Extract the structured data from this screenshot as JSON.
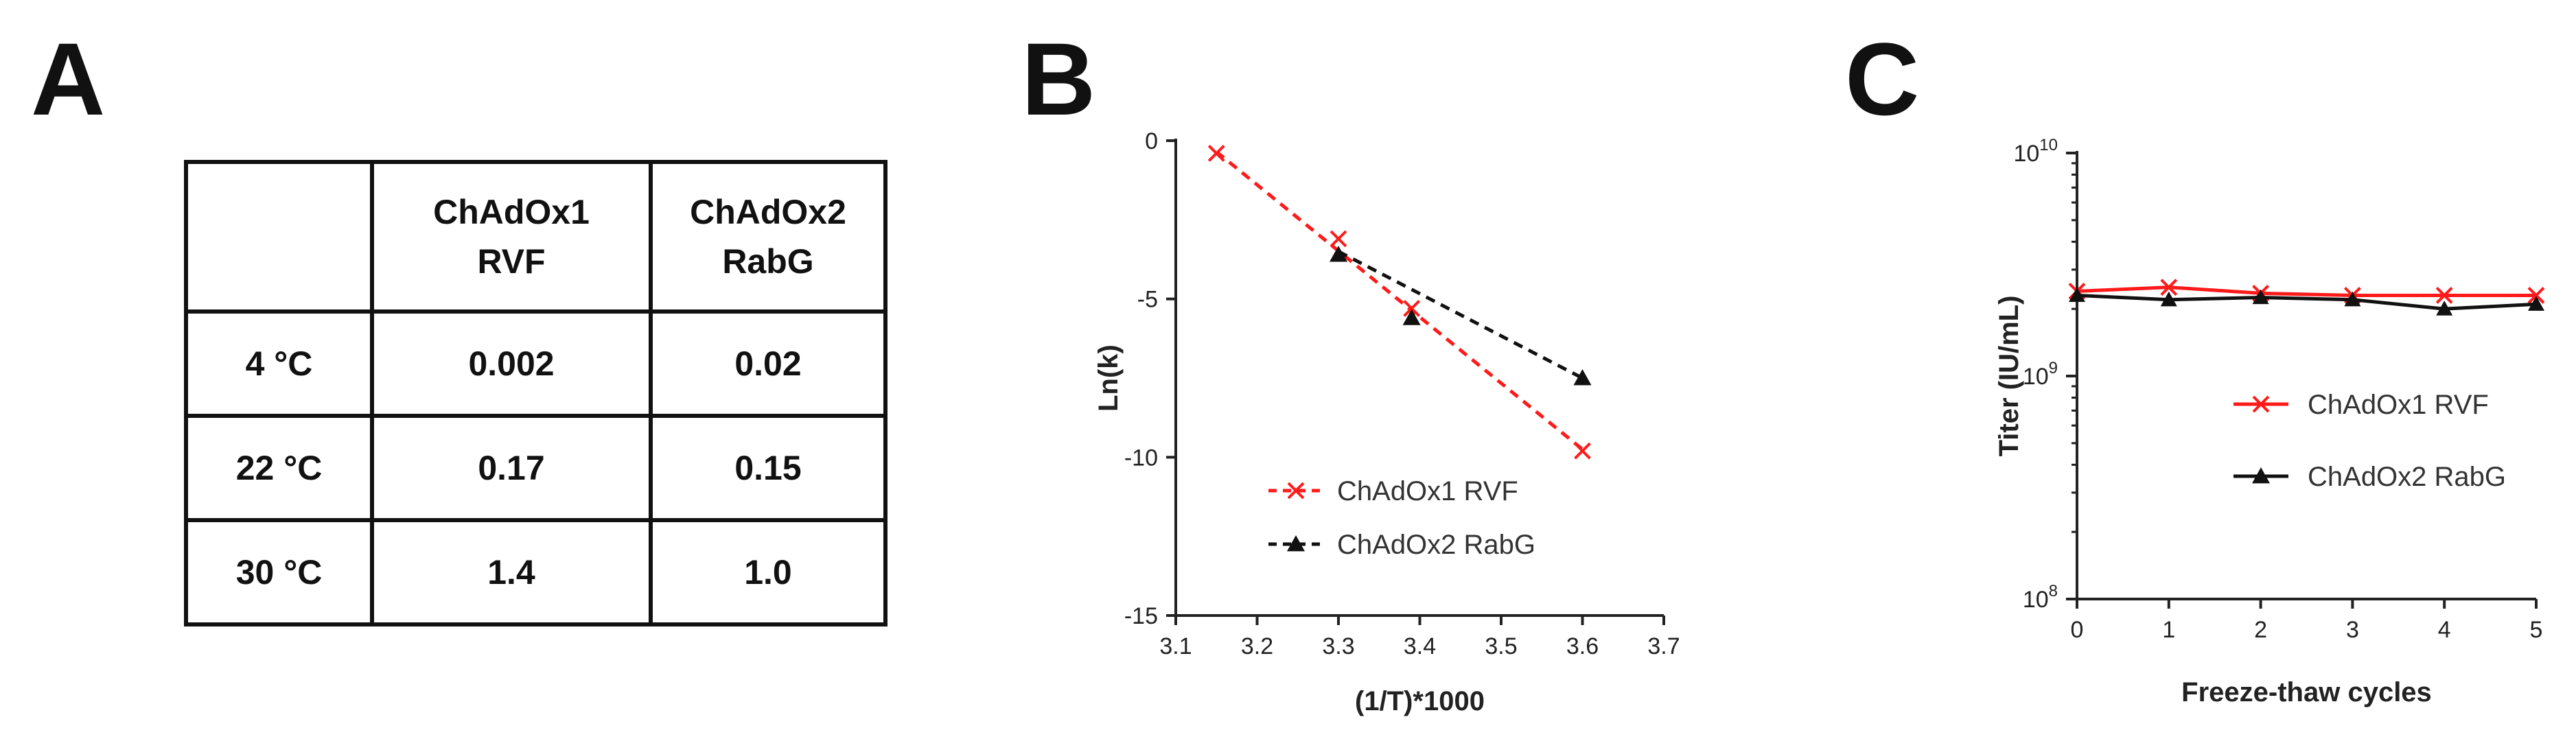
{
  "panels": {
    "a": "A",
    "b": "B",
    "c": "C"
  },
  "colors": {
    "red": "#ff1a1a",
    "black": "#111111"
  },
  "table": {
    "headers": [
      [
        "",
        ""
      ],
      [
        "ChAdOx1",
        "RVF"
      ],
      [
        "ChAdOx2",
        "RabG"
      ]
    ],
    "rows": [
      [
        "4 °C",
        "0.002",
        "0.02"
      ],
      [
        "22 °C",
        "0.17",
        "0.15"
      ],
      [
        "30 °C",
        "1.4",
        "1.0"
      ]
    ]
  },
  "chart_data": [
    {
      "type": "table",
      "panel": "A",
      "columns": [
        "",
        "ChAdOx1 RVF",
        "ChAdOx2 RabG"
      ],
      "rows": [
        [
          "4 °C",
          "0.002",
          "0.02"
        ],
        [
          "22 °C",
          "0.17",
          "0.15"
        ],
        [
          "30 °C",
          "1.4",
          "1.0"
        ]
      ]
    },
    {
      "type": "scatter",
      "panel": "B",
      "xlabel": "(1/T)*1000",
      "ylabel": "Ln(k)",
      "xlim": [
        3.1,
        3.7
      ],
      "ylim": [
        -15,
        0
      ],
      "xticks": [
        "3.1",
        "3.2",
        "3.3",
        "3.4",
        "3.5",
        "3.6",
        "3.7"
      ],
      "yticks": [
        "0",
        "-5",
        "-10",
        "-15"
      ],
      "legend_position": "bottom-left",
      "series": [
        {
          "name": "ChAdOx1 RVF",
          "color": "#ff1a1a",
          "marker": "x",
          "points": [
            [
              3.15,
              -0.4
            ],
            [
              3.3,
              -3.1
            ],
            [
              3.39,
              -5.3
            ],
            [
              3.6,
              -9.8
            ]
          ],
          "fit": [
            [
              3.15,
              -0.35
            ],
            [
              3.6,
              -9.75
            ]
          ]
        },
        {
          "name": "ChAdOx2 RabG",
          "color": "#111111",
          "marker": "triangle",
          "points": [
            [
              3.3,
              -3.6
            ],
            [
              3.39,
              -5.6
            ],
            [
              3.6,
              -7.5
            ]
          ],
          "fit": [
            [
              3.3,
              -3.5
            ],
            [
              3.6,
              -7.5
            ]
          ]
        }
      ]
    },
    {
      "type": "line",
      "panel": "C",
      "xlabel": "Freeze-thaw cycles",
      "ylabel": "Titer (IU/mL)",
      "yscale": "log",
      "xlim": [
        0,
        5
      ],
      "ylim": [
        100000000,
        10000000000
      ],
      "xticks": [
        "0",
        "1",
        "2",
        "3",
        "4",
        "5"
      ],
      "yticks": [
        {
          "base": "10",
          "exp": "8"
        },
        {
          "base": "10",
          "exp": "9"
        },
        {
          "base": "10",
          "exp": "10"
        }
      ],
      "legend_position": "center-right",
      "series": [
        {
          "name": "ChAdOx1 RVF",
          "color": "#ff1a1a",
          "marker": "x",
          "x": [
            0,
            1,
            2,
            3,
            4,
            5
          ],
          "values": [
            2400000000,
            2500000000,
            2350000000,
            2300000000,
            2300000000,
            2300000000
          ]
        },
        {
          "name": "ChAdOx2 RabG",
          "color": "#111111",
          "marker": "triangle",
          "x": [
            0,
            1,
            2,
            3,
            4,
            5
          ],
          "values": [
            2300000000,
            2200000000,
            2250000000,
            2200000000,
            2000000000,
            2100000000
          ]
        }
      ]
    }
  ]
}
